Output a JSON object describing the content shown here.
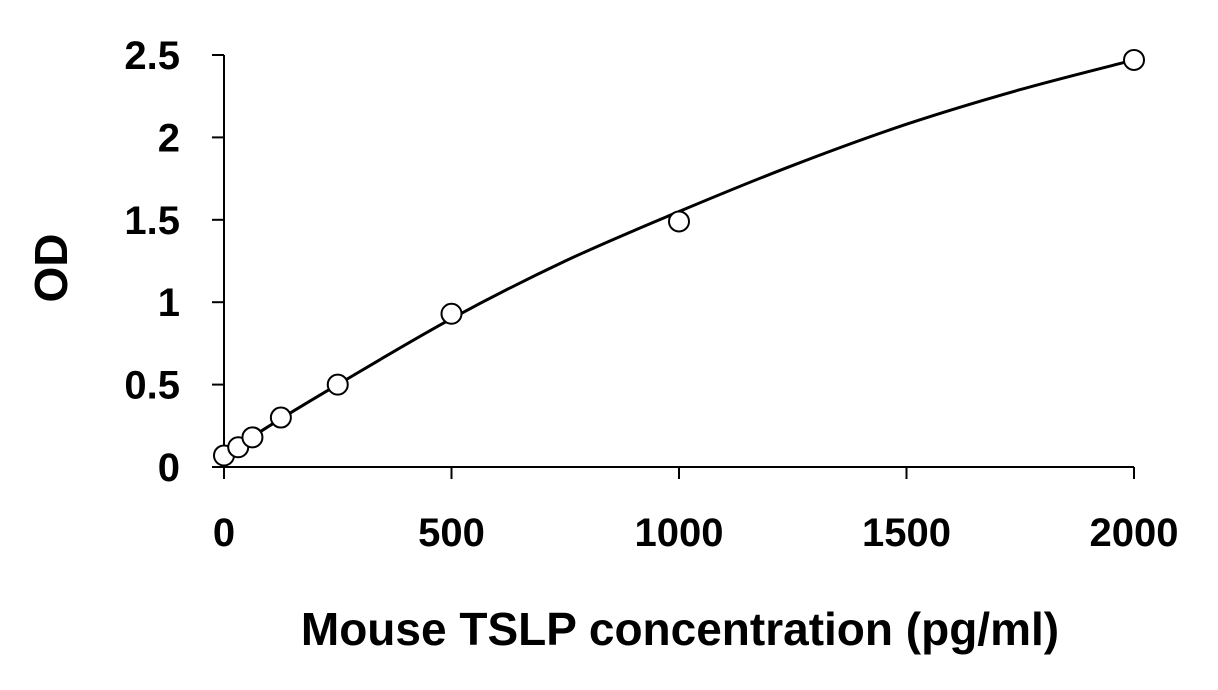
{
  "chart_data": {
    "type": "scatter",
    "title": "",
    "xlabel": "Mouse TSLP concentration (pg/ml)",
    "ylabel": "OD",
    "xlim": [
      0,
      2000
    ],
    "ylim": [
      0,
      2.5
    ],
    "x_ticks": [
      "0",
      "500",
      "1000",
      "1500",
      "2000"
    ],
    "y_ticks": [
      "0",
      "0.5",
      "1",
      "1.5",
      "2",
      "2.5"
    ],
    "grid": false,
    "legend": "none",
    "series": [
      {
        "marker": "open-circle",
        "color": "#000000",
        "points": [
          {
            "x": 0,
            "y": 0.07
          },
          {
            "x": 31.25,
            "y": 0.12
          },
          {
            "x": 62.5,
            "y": 0.18
          },
          {
            "x": 125,
            "y": 0.3
          },
          {
            "x": 250,
            "y": 0.5
          },
          {
            "x": 500,
            "y": 0.93
          },
          {
            "x": 1000,
            "y": 1.49
          },
          {
            "x": 2000,
            "y": 2.47
          }
        ]
      }
    ],
    "trendline": {
      "kind": "polynomial",
      "color": "#000000",
      "points": [
        {
          "x": 0,
          "y": 0.07
        },
        {
          "x": 100,
          "y": 0.25
        },
        {
          "x": 250,
          "y": 0.5
        },
        {
          "x": 500,
          "y": 0.9
        },
        {
          "x": 750,
          "y": 1.25
        },
        {
          "x": 1000,
          "y": 1.55
        },
        {
          "x": 1250,
          "y": 1.83
        },
        {
          "x": 1500,
          "y": 2.08
        },
        {
          "x": 1750,
          "y": 2.29
        },
        {
          "x": 2000,
          "y": 2.47
        }
      ]
    }
  }
}
